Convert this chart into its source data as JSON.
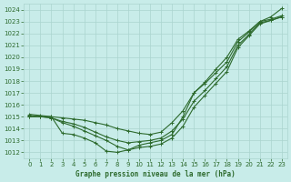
{
  "title": "Graphe pression niveau de la mer (hPa)",
  "background_color": "#c8ece9",
  "grid_color": "#aad4cf",
  "line_color": "#2d6a2d",
  "text_color": "#2d6a2d",
  "xlim": [
    -0.5,
    23.5
  ],
  "ylim": [
    1011.5,
    1024.5
  ],
  "yticks": [
    1012,
    1013,
    1014,
    1015,
    1016,
    1017,
    1018,
    1019,
    1020,
    1021,
    1022,
    1023,
    1024
  ],
  "xticks": [
    0,
    1,
    2,
    3,
    4,
    5,
    6,
    7,
    8,
    9,
    10,
    11,
    12,
    13,
    14,
    15,
    16,
    17,
    18,
    19,
    20,
    21,
    22,
    23
  ],
  "series": [
    [
      1015.0,
      1015.0,
      1015.0,
      1014.9,
      1014.8,
      1014.7,
      1014.5,
      1014.3,
      1014.0,
      1013.8,
      1013.6,
      1013.5,
      1013.7,
      1014.5,
      1015.5,
      1017.0,
      1017.8,
      1018.7,
      1019.6,
      1021.3,
      1022.1,
      1023.0,
      1023.2,
      1023.5
    ],
    [
      1015.0,
      1015.0,
      1014.9,
      1014.5,
      1014.2,
      1013.8,
      1013.4,
      1013.0,
      1012.5,
      1012.2,
      1012.4,
      1012.5,
      1012.7,
      1013.2,
      1014.2,
      1015.8,
      1016.8,
      1017.8,
      1018.8,
      1020.8,
      1021.8,
      1022.8,
      1023.1,
      1023.4
    ],
    [
      1015.1,
      1015.0,
      1014.9,
      1014.6,
      1014.4,
      1014.1,
      1013.7,
      1013.3,
      1013.0,
      1012.8,
      1012.9,
      1013.0,
      1013.2,
      1013.8,
      1014.8,
      1016.3,
      1017.2,
      1018.2,
      1019.2,
      1021.0,
      1021.9,
      1022.9,
      1023.1,
      1023.4
    ],
    [
      1015.2,
      1015.1,
      1015.0,
      1013.6,
      1013.5,
      1013.2,
      1012.8,
      1012.1,
      1012.0,
      1012.2,
      1012.6,
      1012.8,
      1013.0,
      1013.5,
      1015.0,
      1017.0,
      1017.9,
      1019.0,
      1020.0,
      1021.5,
      1022.2,
      1023.0,
      1023.4,
      1024.1
    ]
  ],
  "marker": "+",
  "markersize": 3,
  "linewidth": 0.8,
  "tick_fontsize": 5,
  "label_fontsize": 5.5
}
